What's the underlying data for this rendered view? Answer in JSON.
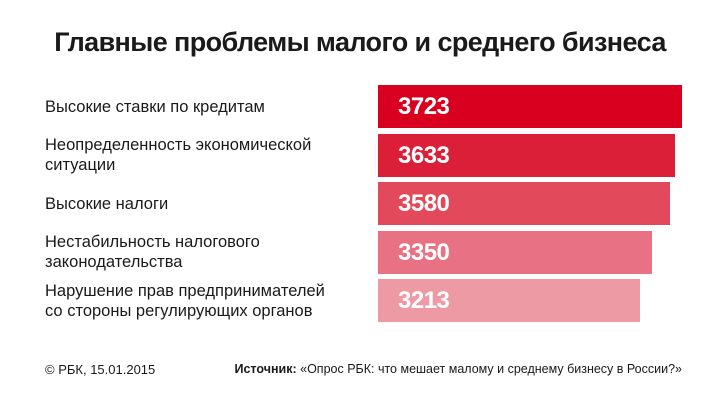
{
  "chart_data": {
    "type": "bar",
    "orientation": "horizontal",
    "title": "Главные проблемы малого и среднего бизнеса",
    "categories": [
      [
        "Высокие ставки по кредитам"
      ],
      [
        "Неопределенность экономической",
        "ситуации"
      ],
      [
        "Высокие налоги"
      ],
      [
        "Нестабильность налогового",
        "законодательства"
      ],
      [
        "Нарушение прав предпринимателей",
        "со стороны регулирующих органов"
      ]
    ],
    "values": [
      3723,
      3633,
      3580,
      3350,
      3213
    ],
    "colors": [
      "#d8001e",
      "#dc1f38",
      "#e24a5c",
      "#e87283",
      "#ee9aa5"
    ],
    "value_labels": true,
    "grid": false,
    "legend": "none"
  },
  "footer": {
    "copyright": "© РБК, 15.01.2015",
    "source_label": "Источник:",
    "source_text": "«Опрос РБК: что мешает малому и среднему бизнесу в России?»"
  }
}
